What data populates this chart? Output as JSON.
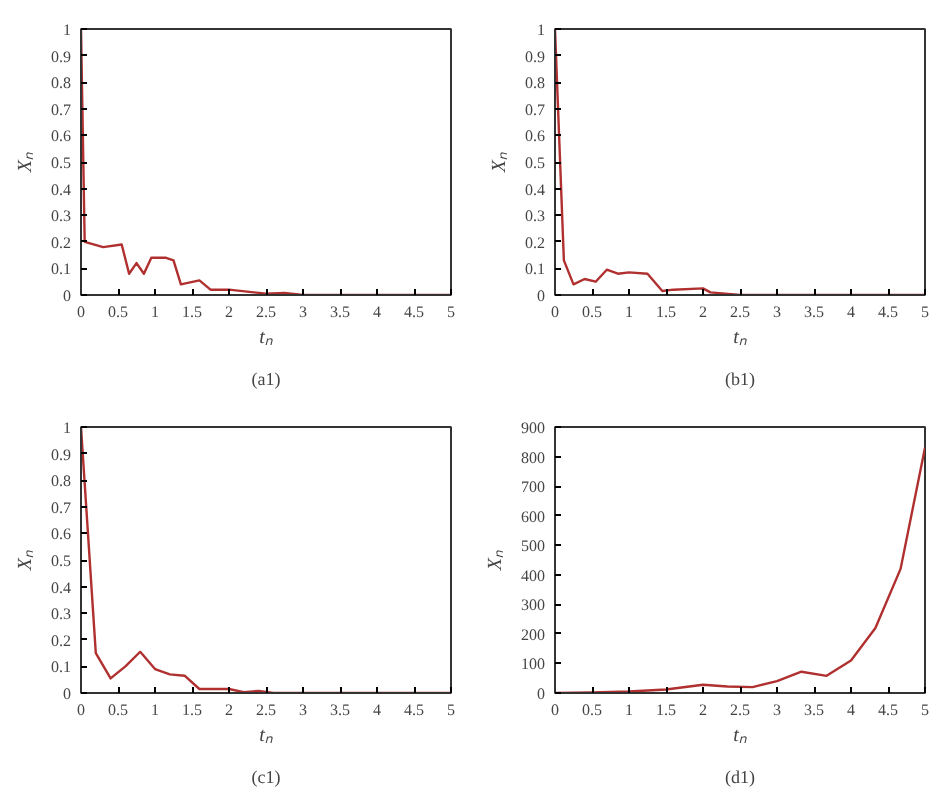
{
  "chart_data": [
    {
      "type": "line",
      "xlabel": "tₙ",
      "ylabel": "Xₙ",
      "annotations": [
        "(a1)"
      ],
      "xlim": [
        0,
        5
      ],
      "ylim": [
        0,
        1
      ],
      "xticks": [
        0,
        0.5,
        1,
        1.5,
        2,
        2.5,
        3,
        3.5,
        4,
        4.5,
        5
      ],
      "yticks": [
        0,
        0.1,
        0.2,
        0.3,
        0.4,
        0.5,
        0.6,
        0.7,
        0.8,
        0.9,
        1
      ],
      "grid": false,
      "series": [
        {
          "color": "#b03030",
          "x": [
            0,
            0.05,
            0.3,
            0.55,
            0.65,
            0.75,
            0.85,
            0.95,
            1.15,
            1.25,
            1.35,
            1.6,
            1.75,
            2.0,
            2.5,
            2.75,
            3,
            5
          ],
          "values": [
            1,
            0.2,
            0.18,
            0.19,
            0.08,
            0.12,
            0.08,
            0.14,
            0.14,
            0.13,
            0.04,
            0.055,
            0.02,
            0.02,
            0.005,
            0.008,
            0,
            0
          ]
        }
      ]
    },
    {
      "type": "line",
      "xlabel": "tₙ",
      "ylabel": "Xₙ",
      "annotations": [
        "(b1)"
      ],
      "xlim": [
        0,
        5
      ],
      "ylim": [
        0,
        1
      ],
      "xticks": [
        0,
        0.5,
        1,
        1.5,
        2,
        2.5,
        3,
        3.5,
        4,
        4.5,
        5
      ],
      "yticks": [
        0,
        0.1,
        0.2,
        0.3,
        0.4,
        0.5,
        0.6,
        0.7,
        0.8,
        0.9,
        1
      ],
      "grid": false,
      "series": [
        {
          "color": "#b03030",
          "x": [
            0,
            0.12,
            0.25,
            0.4,
            0.55,
            0.7,
            0.85,
            1.0,
            1.25,
            1.45,
            1.6,
            2.0,
            2.1,
            2.5,
            5
          ],
          "values": [
            1,
            0.13,
            0.04,
            0.06,
            0.05,
            0.095,
            0.08,
            0.085,
            0.08,
            0.015,
            0.02,
            0.025,
            0.01,
            0,
            0
          ]
        }
      ]
    },
    {
      "type": "line",
      "xlabel": "tₙ",
      "ylabel": "Xₙ",
      "annotations": [
        "(c1)"
      ],
      "xlim": [
        0,
        5
      ],
      "ylim": [
        0,
        1
      ],
      "xticks": [
        0,
        0.5,
        1,
        1.5,
        2,
        2.5,
        3,
        3.5,
        4,
        4.5,
        5
      ],
      "yticks": [
        0,
        0.1,
        0.2,
        0.3,
        0.4,
        0.5,
        0.6,
        0.7,
        0.8,
        0.9,
        1
      ],
      "grid": false,
      "series": [
        {
          "color": "#b03030",
          "x": [
            0,
            0.2,
            0.4,
            0.6,
            0.8,
            1.0,
            1.2,
            1.4,
            1.6,
            2.0,
            2.2,
            2.4,
            2.6,
            5
          ],
          "values": [
            1,
            0.15,
            0.055,
            0.1,
            0.155,
            0.09,
            0.07,
            0.065,
            0.015,
            0.015,
            0.003,
            0.008,
            0,
            0
          ]
        }
      ]
    },
    {
      "type": "line",
      "xlabel": "tₙ",
      "ylabel": "Xₙ",
      "annotations": [
        "(d1)"
      ],
      "xlim": [
        0,
        5
      ],
      "ylim": [
        0,
        900
      ],
      "xticks": [
        0,
        0.5,
        1,
        1.5,
        2,
        2.5,
        3,
        3.5,
        4,
        4.5,
        5
      ],
      "yticks": [
        0,
        100,
        200,
        300,
        400,
        500,
        600,
        700,
        800,
        900
      ],
      "grid": false,
      "series": [
        {
          "color": "#b03030",
          "x": [
            0,
            0.5,
            1,
            1.5,
            2,
            2.33,
            2.67,
            3,
            3.33,
            3.67,
            4,
            4.33,
            4.67,
            5
          ],
          "values": [
            0,
            2,
            5,
            12,
            28,
            22,
            20,
            40,
            72,
            58,
            110,
            220,
            420,
            830
          ]
        }
      ]
    }
  ]
}
